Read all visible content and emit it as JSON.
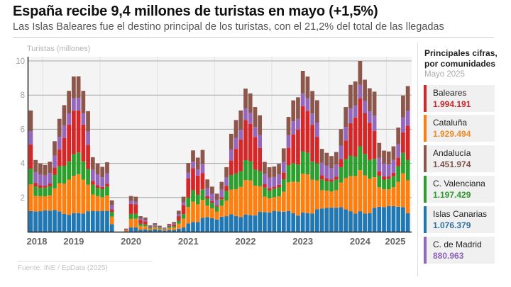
{
  "header": {
    "title": "España recibe 9,4 millones de turistas en mayo (+1,5%)",
    "subtitle": "Las Islas Baleares fue el destino principal de los turistas, con el 21,2% del total de las llegadas"
  },
  "chart_data": {
    "type": "bar",
    "stacked": true,
    "ylabel": "Turistas (millones)",
    "xlabel": "",
    "ylim": [
      0,
      10
    ],
    "yticks": [
      2,
      4,
      6,
      8,
      10
    ],
    "grid": true,
    "year_labels": [
      "2018",
      "2019",
      "2020",
      "2021",
      "2022",
      "2023",
      "2024",
      "2025"
    ],
    "categories": [
      "2018-10",
      "2018-11",
      "2018-12",
      "2019-01",
      "2019-02",
      "2019-03",
      "2019-04",
      "2019-05",
      "2019-06",
      "2019-07",
      "2019-08",
      "2019-09",
      "2019-10",
      "2019-11",
      "2019-12",
      "2020-01",
      "2020-02",
      "2020-03",
      "2020-04",
      "2020-05",
      "2020-06",
      "2020-07",
      "2020-08",
      "2020-09",
      "2020-10",
      "2020-11",
      "2020-12",
      "2021-01",
      "2021-02",
      "2021-03",
      "2021-04",
      "2021-05",
      "2021-06",
      "2021-07",
      "2021-08",
      "2021-09",
      "2021-10",
      "2021-11",
      "2021-12",
      "2022-01",
      "2022-02",
      "2022-03",
      "2022-04",
      "2022-05",
      "2022-06",
      "2022-07",
      "2022-08",
      "2022-09",
      "2022-10",
      "2022-11",
      "2022-12",
      "2023-01",
      "2023-02",
      "2023-03",
      "2023-04",
      "2023-05",
      "2023-06",
      "2023-07",
      "2023-08",
      "2023-09",
      "2023-10",
      "2023-11",
      "2023-12",
      "2024-01",
      "2024-02",
      "2024-03",
      "2024-04",
      "2024-05",
      "2024-06",
      "2024-07",
      "2024-08",
      "2024-09",
      "2024-10",
      "2024-11",
      "2024-12",
      "2025-01",
      "2025-02",
      "2025-03",
      "2025-04",
      "2025-05"
    ],
    "series": [
      {
        "name": "Islas Canarias",
        "color": "#1f77b4",
        "values": [
          1.21,
          1.18,
          1.2,
          1.25,
          1.23,
          1.27,
          1.19,
          1.04,
          0.99,
          1.09,
          1.09,
          1.07,
          1.2,
          1.22,
          1.2,
          1.22,
          1.22,
          0.44,
          0,
          0,
          0.02,
          0.25,
          0.25,
          0.12,
          0.14,
          0.1,
          0.15,
          0.11,
          0.07,
          0.11,
          0.1,
          0.17,
          0.25,
          0.48,
          0.57,
          0.56,
          0.81,
          0.86,
          0.79,
          0.71,
          0.88,
          0.91,
          1.03,
          0.92,
          0.85,
          1.01,
          0.97,
          0.95,
          1.16,
          1.15,
          1.13,
          1.22,
          1.19,
          1.17,
          1.21,
          1.08,
          0.94,
          1.13,
          1.09,
          1.07,
          1.31,
          1.36,
          1.39,
          1.42,
          1.4,
          1.44,
          1.31,
          1.2,
          1.06,
          1.2,
          1.07,
          1.09,
          1.39,
          1.46,
          1.43,
          1.5,
          1.5,
          1.46,
          1.43,
          1.08
        ]
      },
      {
        "name": "Cataluña",
        "color": "#ff7f0e",
        "values": [
          1.56,
          0.92,
          0.88,
          0.82,
          0.9,
          1.27,
          1.65,
          1.78,
          2.06,
          2.18,
          2.28,
          1.98,
          1.55,
          0.96,
          0.88,
          0.8,
          0.9,
          0.44,
          0,
          0,
          0.05,
          0.5,
          0.51,
          0.22,
          0.18,
          0.08,
          0.11,
          0.07,
          0.05,
          0.11,
          0.14,
          0.3,
          0.51,
          0.96,
          1.19,
          1.04,
          1.05,
          0.67,
          0.58,
          0.47,
          0.64,
          0.91,
          1.43,
          1.57,
          1.78,
          2.01,
          2.03,
          1.75,
          1.5,
          0.9,
          0.83,
          0.8,
          0.88,
          1.17,
          1.68,
          1.85,
          1.97,
          2.26,
          2.27,
          1.98,
          1.69,
          1.07,
          1.02,
          0.93,
          1.03,
          1.44,
          1.83,
          2.06,
          2.2,
          2.4,
          2.23,
          2.02,
          1.8,
          1.14,
          1.05,
          0.99,
          1.1,
          1.46,
          1.99,
          1.93
        ]
      },
      {
        "name": "C. Valenciana",
        "color": "#2ca02c",
        "values": [
          0.92,
          0.55,
          0.48,
          0.51,
          0.53,
          0.8,
          0.99,
          1.04,
          1.07,
          1.27,
          1.27,
          1.07,
          0.92,
          0.57,
          0.48,
          0.49,
          0.53,
          0.28,
          0,
          0,
          0.02,
          0.29,
          0.29,
          0.12,
          0.11,
          0.05,
          0.06,
          0.05,
          0.03,
          0.07,
          0.09,
          0.17,
          0.27,
          0.56,
          0.67,
          0.56,
          0.62,
          0.4,
          0.32,
          0.29,
          0.38,
          0.57,
          0.86,
          0.92,
          0.92,
          1.17,
          1.13,
          0.95,
          0.89,
          0.53,
          0.45,
          0.5,
          0.52,
          0.73,
          1.01,
          1.08,
          1.02,
          1.32,
          1.27,
          1.07,
          1.0,
          0.63,
          0.55,
          0.58,
          0.61,
          0.9,
          1.1,
          1.2,
          1.14,
          1.4,
          1.25,
          1.09,
          1.07,
          0.68,
          0.57,
          0.61,
          0.65,
          0.92,
          1.2,
          1.2
        ]
      },
      {
        "name": "Baleares",
        "color": "#d62728",
        "values": [
          1.42,
          0.21,
          0.16,
          0.12,
          0.16,
          0.42,
          0.99,
          1.63,
          2.15,
          2.55,
          2.46,
          2.15,
          1.41,
          0.22,
          0.16,
          0.11,
          0.16,
          0.15,
          0,
          0,
          0.05,
          0.59,
          0.55,
          0.24,
          0.17,
          0.02,
          0.02,
          0.01,
          0.01,
          0.04,
          0.09,
          0.27,
          0.53,
          1.13,
          1.29,
          1.13,
          0.96,
          0.15,
          0.11,
          0.07,
          0.12,
          0.3,
          0.86,
          1.44,
          1.85,
          2.35,
          2.19,
          1.9,
          1.36,
          0.2,
          0.15,
          0.11,
          0.16,
          0.39,
          1.01,
          1.69,
          2.05,
          2.64,
          2.45,
          2.14,
          1.54,
          0.24,
          0.18,
          0.13,
          0.19,
          0.48,
          1.1,
          1.89,
          2.29,
          2.8,
          2.4,
          2.18,
          1.64,
          0.26,
          0.19,
          0.14,
          0.2,
          0.49,
          1.2,
          1.99
        ]
      },
      {
        "name": "C. de Madrid",
        "color": "#9467bd",
        "values": [
          0.78,
          0.63,
          0.64,
          0.59,
          0.62,
          0.69,
          0.73,
          0.74,
          0.66,
          0.73,
          0.73,
          0.66,
          0.78,
          0.65,
          0.64,
          0.57,
          0.61,
          0.24,
          0,
          0,
          0.01,
          0.17,
          0.16,
          0.07,
          0.09,
          0.06,
          0.08,
          0.05,
          0.04,
          0.06,
          0.06,
          0.12,
          0.16,
          0.32,
          0.38,
          0.35,
          0.53,
          0.46,
          0.42,
          0.33,
          0.44,
          0.49,
          0.63,
          0.65,
          0.57,
          0.67,
          0.65,
          0.58,
          0.75,
          0.61,
          0.6,
          0.57,
          0.6,
          0.63,
          0.74,
          0.77,
          0.63,
          0.75,
          0.73,
          0.66,
          0.85,
          0.73,
          0.74,
          0.66,
          0.7,
          0.78,
          0.8,
          0.86,
          0.7,
          0.8,
          0.71,
          0.67,
          0.9,
          0.78,
          0.76,
          0.71,
          0.75,
          0.79,
          0.88,
          0.88
        ]
      },
      {
        "name": "Andalucía",
        "color": "#8c564b",
        "values": [
          1.21,
          0.71,
          0.64,
          0.62,
          0.66,
          0.85,
          1.06,
          1.18,
          1.32,
          1.27,
          1.27,
          1.32,
          1.2,
          0.74,
          0.64,
          0.61,
          0.65,
          0.29,
          0,
          0,
          0.03,
          0.29,
          0.29,
          0.14,
          0.14,
          0.06,
          0.08,
          0.06,
          0.04,
          0.07,
          0.09,
          0.2,
          0.33,
          0.57,
          0.66,
          0.7,
          0.82,
          0.52,
          0.42,
          0.36,
          0.46,
          0.6,
          0.92,
          1.04,
          1.13,
          1.17,
          1.13,
          1.17,
          1.16,
          0.7,
          0.62,
          0.62,
          0.63,
          0.79,
          1.07,
          1.22,
          1.26,
          1.32,
          1.28,
          1.32,
          1.31,
          0.82,
          0.74,
          0.71,
          0.74,
          0.96,
          1.16,
          1.39,
          1.41,
          1.4,
          1.24,
          1.35,
          1.4,
          0.88,
          0.75,
          0.75,
          0.8,
          0.98,
          1.27,
          1.45
        ]
      }
    ]
  },
  "panel": {
    "title": "Principales cifras, por comunidades",
    "subtitle": "Mayo 2025",
    "items": [
      {
        "name": "Baleares",
        "value": "1.994.191",
        "color": "#d62728",
        "value_color": "#c8262b"
      },
      {
        "name": "Cataluña",
        "value": "1.929.494",
        "color": "#ff7f0e",
        "value_color": "#f08a24"
      },
      {
        "name": "Andalucía",
        "value": "1.451.974",
        "color": "#8c564b",
        "value_color": "#7d5449"
      },
      {
        "name": "C. Valenciana",
        "value": "1.197.429",
        "color": "#2ca02c",
        "value_color": "#2e9a2e"
      },
      {
        "name": "Islas Canarias",
        "value": "1.076.379",
        "color": "#1f77b4",
        "value_color": "#2e6f9e"
      },
      {
        "name": "C. de Madrid",
        "value": "880.963",
        "color": "#9467bd",
        "value_color": "#8e63b8"
      }
    ]
  },
  "footer": {
    "source": "Fuente: INE / EpData (2025)"
  }
}
